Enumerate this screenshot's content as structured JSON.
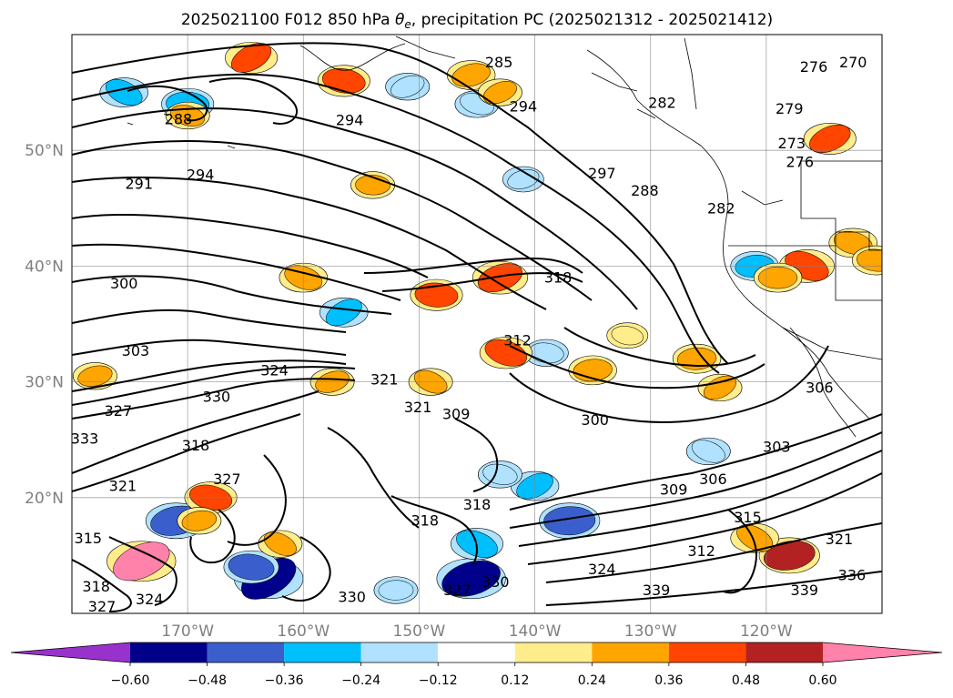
{
  "chart_data": {
    "type": "heatmap",
    "title": "2025021100 F012 850 hPa θe, precipitation PC (2025021312 - 2025021412)",
    "title_parts": {
      "prefix": "2025021100 F012 850 hPa ",
      "theta": "θ",
      "sub": "e",
      "suffix": ", precipitation PC (2025021312 - 2025021412)"
    },
    "map_extent": {
      "lon": [
        -180,
        -110
      ],
      "lat": [
        10,
        60
      ]
    },
    "grid": true,
    "lat_ticks": [
      {
        "value": 50,
        "label": "50°N"
      },
      {
        "value": 40,
        "label": "40°N"
      },
      {
        "value": 30,
        "label": "30°N"
      },
      {
        "value": 20,
        "label": "20°N"
      }
    ],
    "lon_ticks": [
      {
        "value": -170,
        "label": "170°W"
      },
      {
        "value": -160,
        "label": "160°W"
      },
      {
        "value": -150,
        "label": "150°W"
      },
      {
        "value": -140,
        "label": "140°W"
      },
      {
        "value": -130,
        "label": "130°W"
      },
      {
        "value": -120,
        "label": "120°W"
      }
    ],
    "colorbar": {
      "levels": [
        -0.72,
        -0.6,
        -0.48,
        -0.36,
        -0.24,
        -0.12,
        0.12,
        0.24,
        0.36,
        0.48,
        0.6,
        0.72
      ],
      "colors": [
        "#9932cc",
        "#00008b",
        "#3a5fcd",
        "#00bfff",
        "#b0e2ff",
        "#ffffff",
        "#ffec8b",
        "#ffa500",
        "#ff4500",
        "#b22222",
        "#ff82ab"
      ],
      "tick_values": [
        -0.6,
        -0.48,
        -0.36,
        -0.24,
        -0.12,
        0.12,
        0.24,
        0.36,
        0.48,
        0.6
      ],
      "tick_labels": [
        "−0.60",
        "−0.48",
        "−0.36",
        "−0.24",
        "−0.12",
        "0.12",
        "0.24",
        "0.36",
        "0.48",
        "0.60"
      ],
      "extend": "both"
    },
    "theta_e_contour_labels": [
      {
        "text": "270",
        "lon": -112.5,
        "lat": 57.6
      },
      {
        "text": "276",
        "lon": -115.9,
        "lat": 57.2
      },
      {
        "text": "276",
        "lon": -117.1,
        "lat": 49.0
      },
      {
        "text": "273",
        "lon": -117.8,
        "lat": 50.6
      },
      {
        "text": "279",
        "lon": -118.0,
        "lat": 53.6
      },
      {
        "text": "282",
        "lon": -129.0,
        "lat": 54.1
      },
      {
        "text": "282",
        "lon": -123.9,
        "lat": 45.0
      },
      {
        "text": "285",
        "lon": -143.1,
        "lat": 57.6
      },
      {
        "text": "288",
        "lon": -130.5,
        "lat": 46.5
      },
      {
        "text": "294",
        "lon": -141.0,
        "lat": 53.8
      },
      {
        "text": "294",
        "lon": -156.0,
        "lat": 52.6
      },
      {
        "text": "297",
        "lon": -134.2,
        "lat": 48.0
      },
      {
        "text": "288",
        "lon": -170.8,
        "lat": 52.7
      },
      {
        "text": "294",
        "lon": -168.9,
        "lat": 47.9
      },
      {
        "text": "291",
        "lon": -174.2,
        "lat": 47.1
      },
      {
        "text": "300",
        "lon": -175.5,
        "lat": 38.5
      },
      {
        "text": "303",
        "lon": -174.5,
        "lat": 32.7
      },
      {
        "text": "318",
        "lon": -138.0,
        "lat": 39.0
      },
      {
        "text": "312",
        "lon": -141.5,
        "lat": 33.6
      },
      {
        "text": "321",
        "lon": -153.0,
        "lat": 30.2
      },
      {
        "text": "324",
        "lon": -162.5,
        "lat": 31.0
      },
      {
        "text": "330",
        "lon": -167.5,
        "lat": 28.7
      },
      {
        "text": "327",
        "lon": -176.0,
        "lat": 27.5
      },
      {
        "text": "321",
        "lon": -150.1,
        "lat": 27.8
      },
      {
        "text": "309",
        "lon": -146.8,
        "lat": 27.2
      },
      {
        "text": "300",
        "lon": -134.8,
        "lat": 26.7
      },
      {
        "text": "309",
        "lon": -128.0,
        "lat": 20.7
      },
      {
        "text": "306",
        "lon": -124.6,
        "lat": 21.6
      },
      {
        "text": "303",
        "lon": -119.1,
        "lat": 24.4
      },
      {
        "text": "306",
        "lon": -115.4,
        "lat": 29.5
      },
      {
        "text": "318",
        "lon": -169.3,
        "lat": 24.5
      },
      {
        "text": "333",
        "lon": -178.9,
        "lat": 25.1
      },
      {
        "text": "327",
        "lon": -166.6,
        "lat": 21.6
      },
      {
        "text": "321",
        "lon": -175.6,
        "lat": 21.0
      },
      {
        "text": "315",
        "lon": -178.6,
        "lat": 16.5
      },
      {
        "text": "318",
        "lon": -177.9,
        "lat": 12.3
      },
      {
        "text": "327",
        "lon": -177.4,
        "lat": 10.6
      },
      {
        "text": "324",
        "lon": -173.3,
        "lat": 11.2
      },
      {
        "text": "330",
        "lon": -155.8,
        "lat": 11.4
      },
      {
        "text": "327",
        "lon": -146.7,
        "lat": 12.0
      },
      {
        "text": "330",
        "lon": -143.4,
        "lat": 12.7
      },
      {
        "text": "324",
        "lon": -134.2,
        "lat": 13.8
      },
      {
        "text": "339",
        "lon": -129.5,
        "lat": 12.0
      },
      {
        "text": "339",
        "lon": -116.7,
        "lat": 12.0
      },
      {
        "text": "336",
        "lon": -112.6,
        "lat": 13.3
      },
      {
        "text": "321",
        "lon": -113.7,
        "lat": 16.4
      },
      {
        "text": "315",
        "lon": -121.6,
        "lat": 18.3
      },
      {
        "text": "312",
        "lon": -125.6,
        "lat": 15.4
      },
      {
        "text": "318",
        "lon": -145.0,
        "lat": 19.4
      },
      {
        "text": "318",
        "lon": -149.5,
        "lat": 18.0
      }
    ],
    "precip_pc_regions": [
      {
        "lon": -163.0,
        "lat": 13.0,
        "value": -0.6
      },
      {
        "lon": -164.5,
        "lat": 14.0,
        "value": -0.4
      },
      {
        "lon": -145.5,
        "lat": 13.0,
        "value": -0.6
      },
      {
        "lon": -145.0,
        "lat": 16.0,
        "value": -0.36
      },
      {
        "lon": -137.0,
        "lat": 18.0,
        "value": -0.48
      },
      {
        "lon": -140.0,
        "lat": 21.0,
        "value": -0.3
      },
      {
        "lon": -143.0,
        "lat": 22.0,
        "value": -0.24
      },
      {
        "lon": -171.0,
        "lat": 18.0,
        "value": -0.48
      },
      {
        "lon": -175.5,
        "lat": 55.0,
        "value": -0.3
      },
      {
        "lon": -170.0,
        "lat": 54.0,
        "value": -0.36
      },
      {
        "lon": -151.0,
        "lat": 55.5,
        "value": -0.24
      },
      {
        "lon": -145.0,
        "lat": 54.0,
        "value": -0.24
      },
      {
        "lon": -121.0,
        "lat": 40.0,
        "value": -0.3
      },
      {
        "lon": -156.5,
        "lat": 36.0,
        "value": -0.3
      },
      {
        "lon": -139.0,
        "lat": 32.5,
        "value": -0.24
      },
      {
        "lon": -141.0,
        "lat": 47.5,
        "value": -0.2
      },
      {
        "lon": -125.0,
        "lat": 24.0,
        "value": -0.24
      },
      {
        "lon": -152.0,
        "lat": 12.0,
        "value": -0.24
      },
      {
        "lon": -174.0,
        "lat": 14.5,
        "value": 0.6
      },
      {
        "lon": -168.0,
        "lat": 20.0,
        "value": 0.36
      },
      {
        "lon": -169.0,
        "lat": 18.0,
        "value": 0.24
      },
      {
        "lon": -162.0,
        "lat": 16.0,
        "value": 0.24
      },
      {
        "lon": -148.5,
        "lat": 37.5,
        "value": 0.36
      },
      {
        "lon": -143.0,
        "lat": 39.0,
        "value": 0.4
      },
      {
        "lon": -142.5,
        "lat": 32.5,
        "value": 0.36
      },
      {
        "lon": -135.0,
        "lat": 31.0,
        "value": 0.3
      },
      {
        "lon": -164.5,
        "lat": 58.0,
        "value": 0.36
      },
      {
        "lon": -156.5,
        "lat": 56.0,
        "value": 0.36
      },
      {
        "lon": -145.5,
        "lat": 56.5,
        "value": 0.3
      },
      {
        "lon": -116.5,
        "lat": 40.0,
        "value": 0.4
      },
      {
        "lon": -119.0,
        "lat": 39.0,
        "value": 0.3
      },
      {
        "lon": -114.5,
        "lat": 51.0,
        "value": 0.36
      },
      {
        "lon": -112.5,
        "lat": 42.0,
        "value": 0.3
      },
      {
        "lon": -118.0,
        "lat": 15.0,
        "value": 0.48
      },
      {
        "lon": -121.0,
        "lat": 16.5,
        "value": 0.3
      },
      {
        "lon": -110.5,
        "lat": 40.5,
        "value": 0.3
      },
      {
        "lon": -157.5,
        "lat": 30.0,
        "value": 0.24
      },
      {
        "lon": -160.0,
        "lat": 39.0,
        "value": 0.3
      },
      {
        "lon": -126.0,
        "lat": 32.0,
        "value": 0.3
      },
      {
        "lon": -124.0,
        "lat": 29.5,
        "value": 0.24
      },
      {
        "lon": -132.0,
        "lat": 34.0,
        "value": 0.2
      },
      {
        "lon": -178.0,
        "lat": 30.5,
        "value": 0.24
      },
      {
        "lon": -149.0,
        "lat": 30.0,
        "value": 0.24
      },
      {
        "lon": -154.0,
        "lat": 47.0,
        "value": 0.24
      },
      {
        "lon": -143.0,
        "lat": 55.0,
        "value": 0.24
      },
      {
        "lon": -170.0,
        "lat": 53.0,
        "value": 0.24
      }
    ]
  }
}
